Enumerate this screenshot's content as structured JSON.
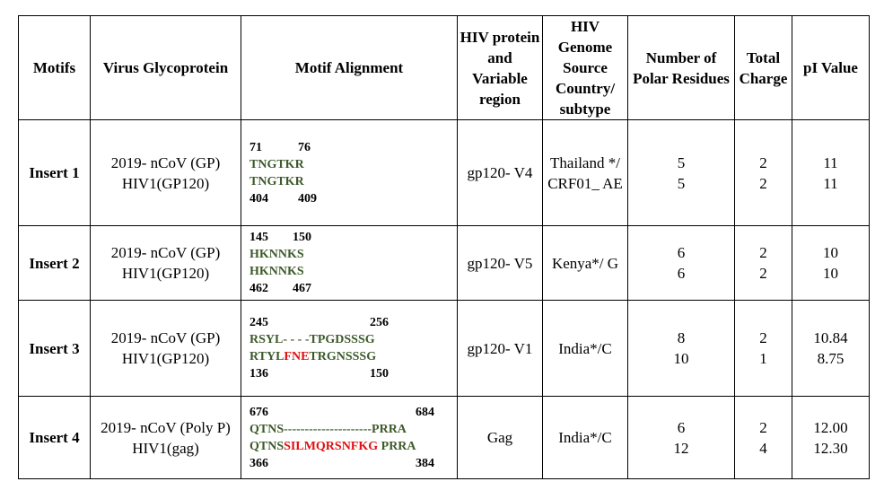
{
  "headers": {
    "motifs": "Motifs",
    "virus": "Virus Glycoprotein",
    "alignment": "Motif Alignment",
    "hiv_protein": "HIV protein and Variable region",
    "hiv_genome": "HIV Genome Source Country/ subtype",
    "polar": "Number of Polar Residues",
    "charge": "Total Charge",
    "pi": "pI Value"
  },
  "rows": [
    {
      "motif": "Insert 1",
      "virus_1": "2019- nCoV (GP)",
      "virus_2": "HIV1(GP120)",
      "top_start": "71",
      "top_end": "76",
      "seq1_green1": "TNGTKR",
      "seq1_red": "",
      "seq1_green2": "",
      "seq2_green1": "TNGTKR",
      "seq2_red": "",
      "seq2_green2": "",
      "bot_start": "404",
      "bot_end": "409",
      "hiv_protein": "gp120- V4",
      "genome": "Thailand */ CRF01_ AE",
      "polar_1": "5",
      "polar_2": "5",
      "charge_1": "2",
      "charge_2": "2",
      "pi_1": "11",
      "pi_2": "11"
    },
    {
      "motif": "Insert 2",
      "virus_1": "2019- nCoV (GP)",
      "virus_2": "HIV1(GP120)",
      "top_start": "145",
      "top_end": "150",
      "seq1_green1": "HKNNKS",
      "seq1_red": "",
      "seq1_green2": "",
      "seq2_green1": "HKNNKS",
      "seq2_red": "",
      "seq2_green2": "",
      "bot_start": "462",
      "bot_end": "467",
      "hiv_protein": "gp120- V5",
      "genome": "Kenya*/ G",
      "polar_1": "6",
      "polar_2": "6",
      "charge_1": "2",
      "charge_2": "2",
      "pi_1": "10",
      "pi_2": "10"
    },
    {
      "motif": "Insert 3",
      "virus_1": "2019- nCoV (GP)",
      "virus_2": "HIV1(GP120)",
      "top_start": "245",
      "top_end": "256",
      "seq1_green1": "RSYL- - - -TPGDSSSG",
      "seq1_red": "",
      "seq1_green2": "",
      "seq2_green1": "RTYL",
      "seq2_red": "FNE",
      "seq2_green2": "TRGNSSSG",
      "bot_start": "136",
      "bot_end": "150",
      "hiv_protein": "gp120- V1",
      "genome": "India*/C",
      "polar_1": "8",
      "polar_2": "10",
      "charge_1": "2",
      "charge_2": "1",
      "pi_1": "10.84",
      "pi_2": "8.75"
    },
    {
      "motif": "Insert 4",
      "virus_1": "2019- nCoV (Poly P)",
      "virus_2": "HIV1(gag)",
      "top_start": "676",
      "top_end": "684",
      "seq1_green1": "QTNS---------------------PRRA",
      "seq1_red": "",
      "seq1_green2": "",
      "seq2_green1": "QTNS",
      "seq2_red": "SILMQRSNFKG",
      "seq2_green2": " PRRA",
      "bot_start": "366",
      "bot_end": "384",
      "hiv_protein": "Gag",
      "genome": "India*/C",
      "polar_1": "6",
      "polar_2": "12",
      "charge_1": "2",
      "charge_2": "4",
      "pi_1": "12.00",
      "pi_2": "12.30"
    }
  ]
}
